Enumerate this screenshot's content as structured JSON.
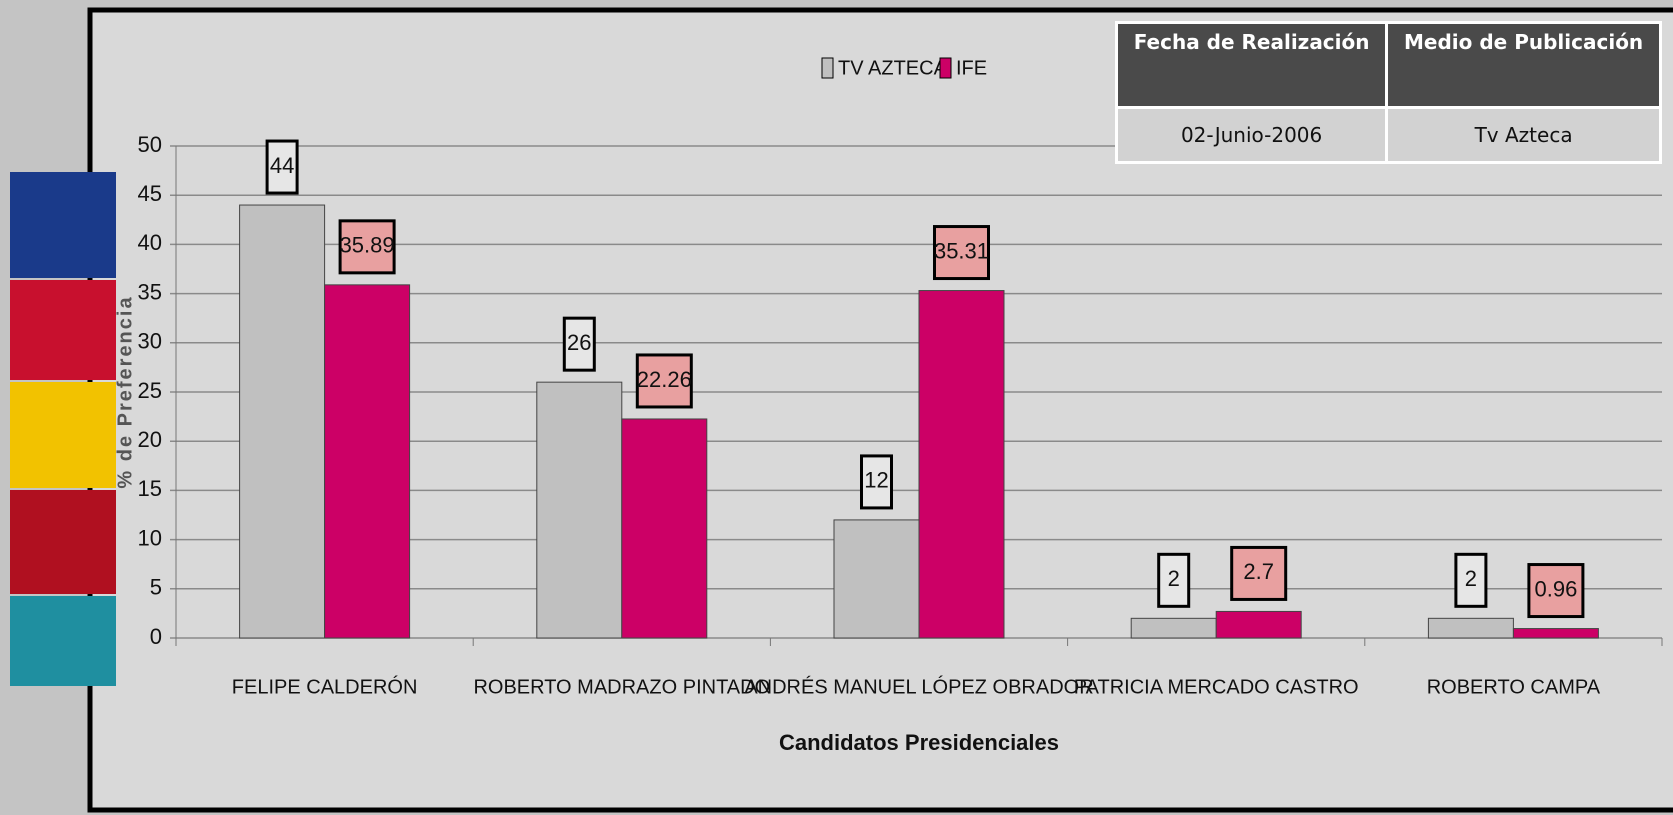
{
  "chart_data": {
    "type": "bar",
    "categories": [
      "FELIPE CALDERÓN",
      "ROBERTO MADRAZO PINTADO",
      "ANDRÉS MANUEL LÓPEZ OBRADOR",
      "PATRICIA MERCADO CASTRO",
      "ROBERTO CAMPA"
    ],
    "series": [
      {
        "name": "TV AZTECA",
        "color": "#c0c0c0",
        "values": [
          44,
          26,
          12,
          2,
          2
        ]
      },
      {
        "name": "IFE",
        "color": "#cc0066",
        "values": [
          35.89,
          22.26,
          35.31,
          2.7,
          0.96
        ]
      }
    ],
    "ylim": [
      0,
      50
    ],
    "yticks": [
      0,
      5,
      10,
      15,
      20,
      25,
      30,
      35,
      40,
      45,
      50
    ],
    "grid": true,
    "y_label": "% de Preferencia",
    "x_label": "Candidatos Presidenciales"
  },
  "table": {
    "header": [
      "Fecha de Realización",
      "Medio de Publicación"
    ],
    "rows": [
      [
        "02-Junio-2006",
        "Tv Azteca"
      ]
    ]
  }
}
